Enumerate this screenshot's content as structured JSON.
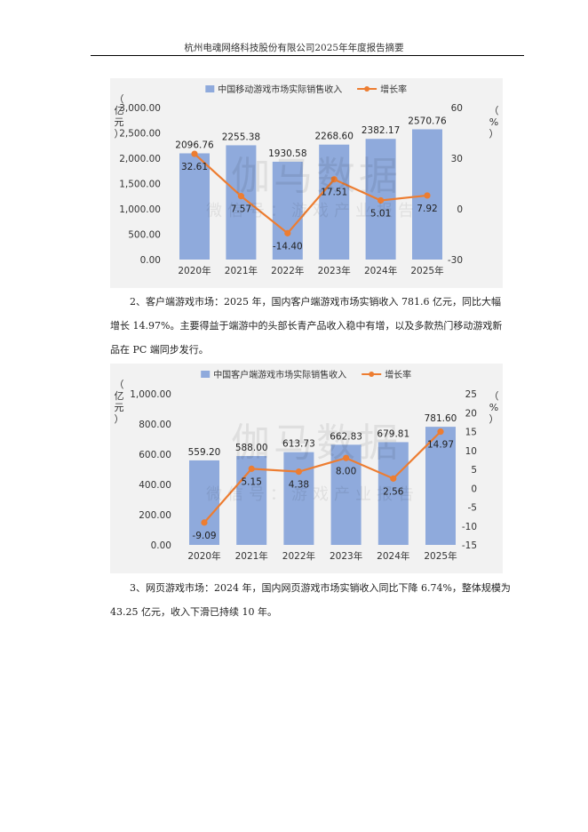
{
  "header": {
    "title": "杭州电魂网络科技股份有限公司2025年年度报告摘要"
  },
  "watermark": {
    "main": "伽马数据",
    "sub": "微信号：游戏产业报告"
  },
  "paragraphs": [
    {
      "lines": [
        "2、客户端游戏市场：2025 年，国内客户端游戏市场实销收入 781.6 亿元，同比大幅",
        "增长 14.97%。主要得益于端游中的头部长青产品收入稳中有增，以及多款热门移动游戏新",
        "品在 PC 端同步发行。"
      ]
    },
    {
      "lines": [
        "3、网页游戏市场：2024 年，国内网页游戏市场实销收入同比下降 6.74%，整体规模为",
        "43.25 亿元，收入下滑已持续 10 年。"
      ]
    }
  ],
  "chart_data": [
    {
      "type": "bar",
      "categories": [
        "2020年",
        "2021年",
        "2022年",
        "2023年",
        "2024年",
        "2025年"
      ],
      "series": [
        {
          "name": "中国移动游戏市场实际销售收入",
          "type": "bar",
          "axis": "left",
          "values": [
            2096.76,
            2255.38,
            1930.58,
            2268.6,
            2382.17,
            2570.76
          ],
          "labels": [
            "2096.76",
            "2255.38",
            "1930.58",
            "2268.60",
            "2382.17",
            "2570.76"
          ]
        },
        {
          "name": "增长率",
          "type": "line",
          "axis": "right",
          "values": [
            32.61,
            7.57,
            -14.4,
            17.51,
            5.01,
            7.92
          ],
          "labels": [
            "32.61",
            "7.57",
            "-14.40",
            "17.51",
            "5.01",
            "7.92"
          ]
        }
      ],
      "y_left": {
        "label": "（亿元）",
        "min": 0,
        "max": 3000,
        "ticks": [
          "0.00",
          "500.00",
          "1,000.00",
          "1,500.00",
          "2,000.00",
          "2,500.00",
          "3,000.00"
        ]
      },
      "y_right": {
        "label": "（%）",
        "min": -30,
        "max": 60,
        "ticks": [
          "-30",
          "0",
          "30",
          "60"
        ]
      },
      "legend": "top",
      "grid": false,
      "colors": {
        "bar": "#8faadc",
        "line": "#ed7d31"
      }
    },
    {
      "type": "bar",
      "categories": [
        "2020年",
        "2021年",
        "2022年",
        "2023年",
        "2024年",
        "2025年"
      ],
      "series": [
        {
          "name": "中国客户端游戏市场实际销售收入",
          "type": "bar",
          "axis": "left",
          "values": [
            559.2,
            588.0,
            613.73,
            662.83,
            679.81,
            781.6
          ],
          "labels": [
            "559.20",
            "588.00",
            "613.73",
            "662.83",
            "679.81",
            "781.60"
          ]
        },
        {
          "name": "增长率",
          "type": "line",
          "axis": "right",
          "values": [
            -9.09,
            5.15,
            4.38,
            8.0,
            2.56,
            14.97
          ],
          "labels": [
            "-9.09",
            "5.15",
            "4.38",
            "8.00",
            "2.56",
            "14.97"
          ]
        }
      ],
      "y_left": {
        "label": "（亿元）",
        "min": 0,
        "max": 1000,
        "ticks": [
          "0.00",
          "200.00",
          "400.00",
          "600.00",
          "800.00",
          "1,000.00"
        ]
      },
      "y_right": {
        "label": "（%）",
        "min": -15,
        "max": 25,
        "ticks": [
          "-15",
          "-10",
          "-5",
          "0",
          "5",
          "10",
          "15",
          "20",
          "25"
        ]
      },
      "legend": "top",
      "grid": false,
      "colors": {
        "bar": "#8faadc",
        "line": "#ed7d31"
      }
    }
  ]
}
